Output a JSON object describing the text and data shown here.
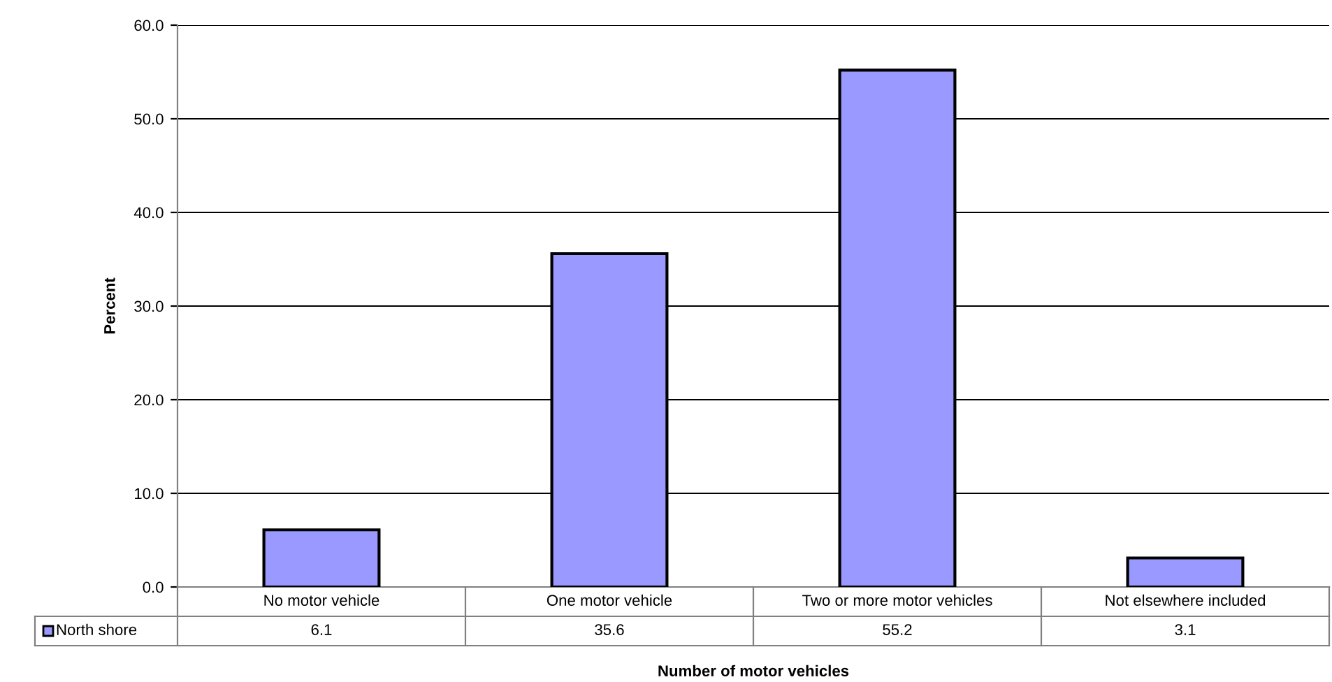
{
  "chart_data": {
    "type": "bar",
    "xlabel": "Number of motor vehicles",
    "ylabel": "Percent",
    "categories": [
      "No motor vehicle",
      "One motor vehicle",
      "Two or more motor vehicles",
      "Not elsewhere included"
    ],
    "series": [
      {
        "name": "North shore",
        "color": "#9999ff",
        "values": [
          6.1,
          35.6,
          55.2,
          3.1
        ]
      }
    ],
    "ylim": [
      0,
      60
    ],
    "yticks": [
      {
        "value": 0,
        "label": "0.0"
      },
      {
        "value": 10,
        "label": "10.0"
      },
      {
        "value": 20,
        "label": "20.0"
      },
      {
        "value": 30,
        "label": "30.0"
      },
      {
        "value": 40,
        "label": "40.0"
      },
      {
        "value": 50,
        "label": "50.0"
      },
      {
        "value": 60,
        "label": "60.0"
      }
    ],
    "grid": "y",
    "legend": "bottom",
    "data_labels": true
  }
}
